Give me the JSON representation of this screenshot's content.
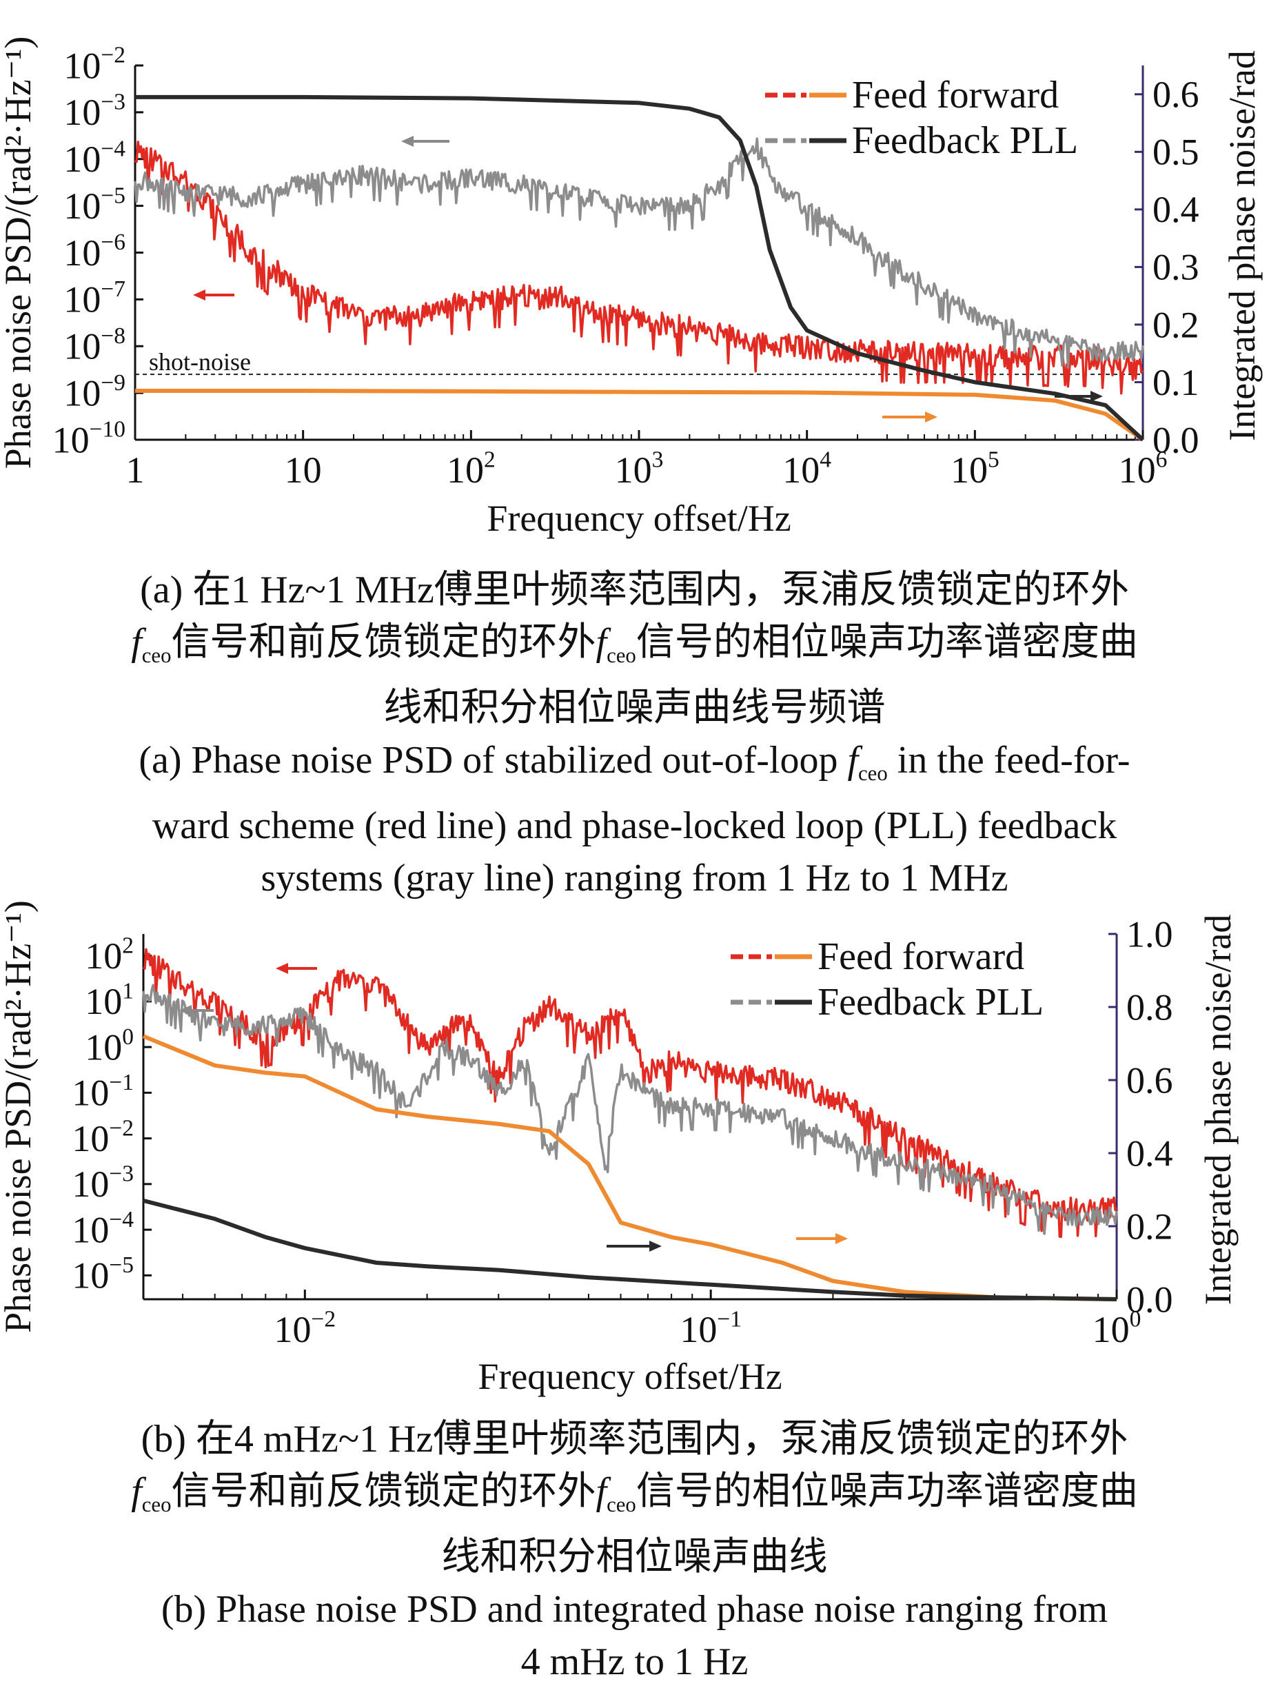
{
  "chart_data": [
    {
      "type": "line",
      "panel": "(a)",
      "xlabel": "Frequency offset/Hz",
      "ylabel": "Phase noise PSD/(rad²·Hz⁻¹)",
      "ylabel_right": "Integrated phase noise/rad",
      "xscale": "log",
      "yscale": "log",
      "xlim": [
        1,
        1000000
      ],
      "ylim": [
        1e-10,
        0.01
      ],
      "ylim_right": [
        0.0,
        0.65
      ],
      "x_ticks": [
        "1",
        "10",
        "10^2",
        "10^3",
        "10^4",
        "10^5",
        "10^6"
      ],
      "y_ticks": [
        "10^-10",
        "10^-9",
        "10^-8",
        "10^-7",
        "10^-6",
        "10^-5",
        "10^-4",
        "10^-3",
        "10^-2"
      ],
      "y_ticks_right": [
        "0.0",
        "0.1",
        "0.2",
        "0.3",
        "0.4",
        "0.5",
        "0.6"
      ],
      "legend": [
        "Feed forward",
        "Feedback PLL"
      ],
      "legend_position": "top-right",
      "annotation": "shot-noise",
      "shot_noise_level": 2.5e-09,
      "series": [
        {
          "name": "Feed forward",
          "axis": "left",
          "color": "#e02a22",
          "x": [
            1,
            2,
            3,
            5,
            10,
            20,
            30,
            50,
            100,
            200,
            350,
            500,
            1000,
            2000,
            3000,
            5000,
            10000,
            20000,
            50000,
            100000,
            200000,
            500000,
            1000000
          ],
          "y": [
            0.00015,
            4e-05,
            8e-06,
            1e-06,
            1.5e-07,
            5e-08,
            4e-08,
            5e-08,
            1e-07,
            1.2e-07,
            1.1e-07,
            6e-08,
            4e-08,
            2.5e-08,
            2e-08,
            1.2e-08,
            1e-08,
            8e-09,
            7e-09,
            7e-09,
            6e-09,
            6e-09,
            3e-09
          ]
        },
        {
          "name": "Feedback PLL",
          "axis": "left",
          "color": "#8c8c8c",
          "x": [
            1,
            2,
            5,
            10,
            20,
            50,
            100,
            200,
            500,
            1000,
            2000,
            3000,
            4000,
            5000,
            7000,
            10000,
            20000,
            50000,
            100000,
            200000,
            500000,
            1000000
          ],
          "y": [
            4e-05,
            2e-05,
            1.5e-05,
            3e-05,
            5e-05,
            3e-05,
            4e-05,
            3e-05,
            1.5e-05,
            1e-05,
            1e-05,
            3e-05,
            0.0001,
            0.0002,
            2e-05,
            1e-05,
            2e-06,
            2e-07,
            5e-08,
            2e-08,
            8e-09,
            8e-09
          ]
        },
        {
          "name": "Feed forward integrated",
          "axis": "right",
          "color": "#f08a30",
          "x": [
            1,
            10,
            100,
            1000,
            10000,
            100000,
            300000,
            600000,
            1000000
          ],
          "y": [
            0.085,
            0.085,
            0.084,
            0.083,
            0.082,
            0.078,
            0.068,
            0.045,
            0.0
          ]
        },
        {
          "name": "Feedback PLL integrated",
          "axis": "right",
          "color": "#2b2b2b",
          "x": [
            1,
            10,
            100,
            1000,
            2000,
            3000,
            4000,
            5000,
            6000,
            8000,
            10000,
            20000,
            50000,
            100000,
            300000,
            600000,
            1000000
          ],
          "y": [
            0.595,
            0.595,
            0.593,
            0.585,
            0.575,
            0.56,
            0.52,
            0.44,
            0.33,
            0.23,
            0.19,
            0.15,
            0.12,
            0.1,
            0.08,
            0.06,
            0.0
          ]
        }
      ]
    },
    {
      "type": "line",
      "panel": "(b)",
      "xlabel": "Frequency offset/Hz",
      "ylabel": "Phase noise PSD/(rad²·Hz⁻¹)",
      "ylabel_right": "Integrated phase noise/rad",
      "xscale": "log",
      "yscale": "log",
      "xlim": [
        0.004,
        1.0
      ],
      "ylim": [
        3e-06,
        300
      ],
      "ylim_right": [
        0.0,
        1.0
      ],
      "x_ticks": [
        "10^-2",
        "10^-1",
        "10^0"
      ],
      "y_ticks": [
        "10^-5",
        "10^-4",
        "10^-3",
        "10^-2",
        "10^-1",
        "10^0",
        "10^1",
        "10^2"
      ],
      "y_ticks_right": [
        "0.0",
        "0.2",
        "0.4",
        "0.6",
        "0.8",
        "1.0"
      ],
      "legend": [
        "Feed forward",
        "Feedback PLL"
      ],
      "legend_position": "top-right",
      "series": [
        {
          "name": "Feed forward",
          "axis": "left",
          "color": "#e02a22",
          "x": [
            0.004,
            0.006,
            0.008,
            0.01,
            0.012,
            0.015,
            0.02,
            0.025,
            0.03,
            0.035,
            0.04,
            0.05,
            0.06,
            0.07,
            0.08,
            0.1,
            0.15,
            0.2,
            0.3,
            0.5,
            0.7,
            1.0
          ],
          "y": [
            90,
            10,
            1.5,
            5,
            30,
            25,
            1,
            5,
            0.2,
            3,
            8,
            2,
            6,
            0.3,
            0.5,
            0.3,
            0.2,
            0.08,
            0.01,
            0.001,
            0.0003,
            0.0003
          ]
        },
        {
          "name": "Feedback PLL",
          "axis": "left",
          "color": "#8c8c8c",
          "x": [
            0.004,
            0.006,
            0.008,
            0.01,
            0.012,
            0.015,
            0.018,
            0.022,
            0.026,
            0.03,
            0.035,
            0.04,
            0.05,
            0.055,
            0.06,
            0.07,
            0.08,
            0.1,
            0.15,
            0.2,
            0.3,
            0.5,
            0.7,
            1.0
          ],
          "y": [
            20,
            3,
            3,
            5,
            1,
            0.3,
            0.05,
            1,
            0.5,
            0.1,
            0.5,
            0.005,
            0.5,
            0.003,
            0.3,
            0.1,
            0.05,
            0.05,
            0.03,
            0.01,
            0.003,
            0.001,
            0.0002,
            0.0002
          ]
        },
        {
          "name": "Feed forward integrated",
          "axis": "right",
          "color": "#f08a30",
          "x": [
            0.004,
            0.006,
            0.008,
            0.01,
            0.015,
            0.02,
            0.03,
            0.04,
            0.05,
            0.06,
            0.08,
            0.1,
            0.15,
            0.2,
            0.3,
            0.5,
            1.0
          ],
          "y": [
            0.72,
            0.64,
            0.62,
            0.61,
            0.52,
            0.5,
            0.48,
            0.46,
            0.37,
            0.21,
            0.17,
            0.15,
            0.1,
            0.05,
            0.02,
            0.005,
            0.0
          ]
        },
        {
          "name": "Feedback PLL integrated",
          "axis": "right",
          "color": "#2b2b2b",
          "x": [
            0.004,
            0.006,
            0.008,
            0.01,
            0.015,
            0.02,
            0.03,
            0.05,
            0.1,
            0.2,
            0.3,
            0.5,
            1.0
          ],
          "y": [
            0.27,
            0.22,
            0.17,
            0.14,
            0.1,
            0.09,
            0.08,
            0.06,
            0.04,
            0.02,
            0.01,
            0.005,
            0.0
          ]
        }
      ]
    }
  ],
  "captions": {
    "a_cn_1": "(a) 在1 Hz~1 MHz傅里叶频率范围内，泵浦反馈锁定的环外",
    "a_cn_2_f": "f",
    "a_cn_2_sub": "ceo",
    "a_cn_2_mid": "信号和前反馈锁定的环外",
    "a_cn_2_f2": "f",
    "a_cn_2_sub2": "ceo",
    "a_cn_2_end": "信号的相位噪声功率谱密度曲",
    "a_cn_3": "线和积分相位噪声曲线号频谱",
    "a_en_1_pre": "(a) Phase noise PSD of stabilized out-of-loop ",
    "a_en_1_f": "f",
    "a_en_1_sub": "ceo",
    "a_en_1_post": " in the feed-for-",
    "a_en_2": "ward scheme (red line) and phase-locked loop (PLL) feedback",
    "a_en_3": "systems (gray line) ranging from 1 Hz to 1 MHz",
    "b_cn_1": "(b) 在4 mHz~1 Hz傅里叶频率范围内，泵浦反馈锁定的环外",
    "b_cn_2_f": "f",
    "b_cn_2_sub": "ceo",
    "b_cn_2_mid": "信号和前反馈锁定的环外",
    "b_cn_2_f2": "f",
    "b_cn_2_sub2": "ceo",
    "b_cn_2_end": "信号的相位噪声功率谱密度曲",
    "b_cn_3": "线和积分相位噪声曲线",
    "b_en_1": "(b) Phase noise PSD and integrated phase noise ranging from",
    "b_en_2": "4 mHz to 1 Hz"
  }
}
